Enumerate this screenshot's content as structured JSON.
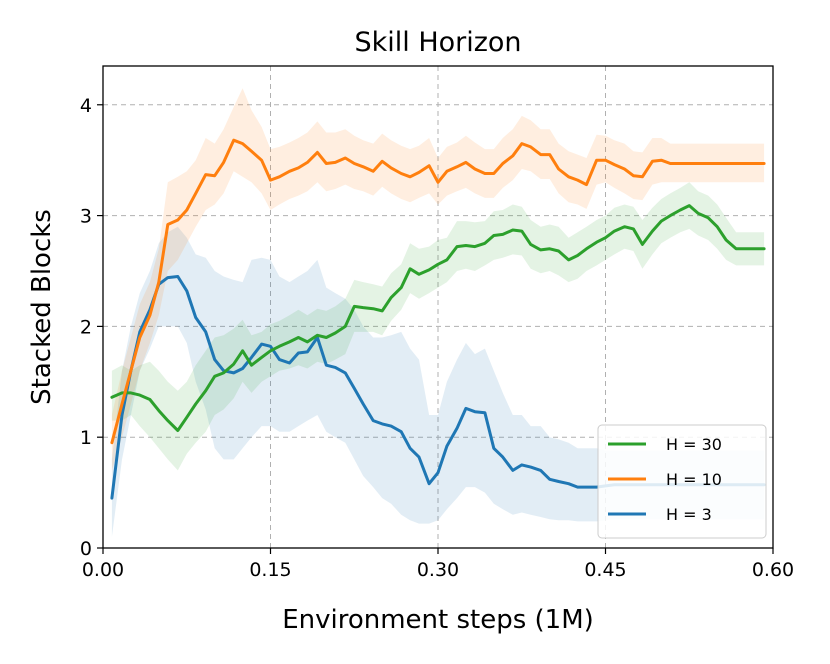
{
  "chart_data": {
    "type": "line",
    "title": "Skill Horizon",
    "xlabel": "Environment steps (1M)",
    "ylabel": "Stacked Blocks",
    "xlim": [
      0.0,
      0.6
    ],
    "ylim": [
      0,
      4.35
    ],
    "xticks": [
      0.0,
      0.15,
      0.3,
      0.45,
      0.6
    ],
    "xtick_labels": [
      "0.00",
      "0.15",
      "0.30",
      "0.45",
      "0.60"
    ],
    "yticks": [
      0,
      1,
      2,
      3,
      4
    ],
    "ytick_labels": [
      "0",
      "1",
      "2",
      "3",
      "4"
    ],
    "grid": true,
    "legend_position": "lower-right",
    "x": [
      0.008,
      0.017,
      0.025,
      0.033,
      0.042,
      0.05,
      0.058,
      0.067,
      0.075,
      0.083,
      0.092,
      0.1,
      0.108,
      0.117,
      0.125,
      0.133,
      0.142,
      0.15,
      0.158,
      0.167,
      0.175,
      0.183,
      0.192,
      0.2,
      0.208,
      0.217,
      0.225,
      0.233,
      0.242,
      0.25,
      0.258,
      0.267,
      0.275,
      0.283,
      0.292,
      0.3,
      0.308,
      0.317,
      0.325,
      0.333,
      0.342,
      0.35,
      0.358,
      0.367,
      0.375,
      0.383,
      0.392,
      0.4,
      0.408,
      0.417,
      0.425,
      0.433,
      0.442,
      0.45,
      0.458,
      0.467,
      0.475,
      0.483,
      0.492,
      0.5,
      0.508,
      0.517,
      0.525,
      0.533,
      0.542,
      0.55,
      0.558,
      0.567,
      0.575,
      0.583,
      0.592
    ],
    "series": [
      {
        "name": "H = 30",
        "color": "#2ca02c",
        "values": [
          1.36,
          1.4,
          1.4,
          1.38,
          1.34,
          1.24,
          1.15,
          1.06,
          1.18,
          1.3,
          1.42,
          1.55,
          1.58,
          1.66,
          1.78,
          1.65,
          1.72,
          1.78,
          1.82,
          1.86,
          1.9,
          1.86,
          1.92,
          1.9,
          1.94,
          2.0,
          2.18,
          2.17,
          2.16,
          2.14,
          2.26,
          2.35,
          2.52,
          2.47,
          2.51,
          2.56,
          2.6,
          2.72,
          2.73,
          2.72,
          2.75,
          2.82,
          2.83,
          2.87,
          2.86,
          2.74,
          2.69,
          2.7,
          2.68,
          2.6,
          2.64,
          2.7,
          2.76,
          2.8,
          2.86,
          2.9,
          2.88,
          2.74,
          2.86,
          2.95,
          3.0,
          3.05,
          3.09,
          3.02,
          2.98,
          2.9,
          2.78,
          2.7,
          2.7,
          2.7,
          2.7
        ],
        "lower": [
          1.15,
          1.15,
          1.2,
          1.1,
          1.0,
          0.9,
          0.8,
          0.7,
          0.85,
          0.95,
          1.05,
          1.2,
          1.25,
          1.35,
          1.5,
          1.4,
          1.5,
          1.55,
          1.6,
          1.62,
          1.65,
          1.62,
          1.68,
          1.66,
          1.7,
          1.75,
          1.95,
          1.95,
          1.95,
          1.92,
          2.05,
          2.15,
          2.3,
          2.25,
          2.3,
          2.35,
          2.4,
          2.5,
          2.52,
          2.5,
          2.55,
          2.6,
          2.62,
          2.65,
          2.64,
          2.52,
          2.48,
          2.5,
          2.46,
          2.4,
          2.43,
          2.5,
          2.55,
          2.6,
          2.65,
          2.7,
          2.68,
          2.52,
          2.65,
          2.75,
          2.8,
          2.85,
          2.88,
          2.82,
          2.78,
          2.7,
          2.6,
          2.55,
          2.55,
          2.55,
          2.55
        ],
        "upper": [
          1.6,
          1.65,
          1.6,
          1.65,
          1.68,
          1.6,
          1.5,
          1.42,
          1.5,
          1.65,
          1.78,
          1.9,
          1.92,
          1.98,
          2.06,
          1.92,
          1.95,
          2.02,
          2.05,
          2.1,
          2.15,
          2.1,
          2.16,
          2.14,
          2.18,
          2.25,
          2.42,
          2.4,
          2.38,
          2.36,
          2.48,
          2.56,
          2.75,
          2.7,
          2.72,
          2.78,
          2.8,
          2.95,
          2.95,
          2.94,
          2.95,
          3.04,
          3.05,
          3.1,
          3.08,
          2.96,
          2.9,
          2.92,
          2.9,
          2.8,
          2.85,
          2.9,
          2.96,
          3.0,
          3.07,
          3.1,
          3.08,
          2.96,
          3.07,
          3.15,
          3.2,
          3.25,
          3.3,
          3.22,
          3.18,
          3.1,
          2.98,
          2.85,
          2.85,
          2.85,
          2.85
        ]
      },
      {
        "name": "H = 10",
        "color": "#ff7f0e",
        "values": [
          0.95,
          1.3,
          1.6,
          1.9,
          2.1,
          2.4,
          2.92,
          2.96,
          3.05,
          3.2,
          3.37,
          3.36,
          3.48,
          3.68,
          3.65,
          3.58,
          3.5,
          3.32,
          3.35,
          3.4,
          3.43,
          3.48,
          3.57,
          3.47,
          3.48,
          3.52,
          3.47,
          3.44,
          3.4,
          3.49,
          3.43,
          3.38,
          3.35,
          3.39,
          3.45,
          3.3,
          3.4,
          3.44,
          3.48,
          3.42,
          3.38,
          3.38,
          3.47,
          3.54,
          3.65,
          3.62,
          3.55,
          3.55,
          3.42,
          3.35,
          3.32,
          3.28,
          3.5,
          3.5,
          3.46,
          3.42,
          3.36,
          3.35,
          3.49,
          3.5,
          3.47,
          3.47,
          3.47,
          3.47,
          3.47,
          3.47,
          3.47,
          3.47,
          3.47,
          3.47,
          3.47
        ],
        "lower": [
          0.7,
          1.0,
          1.3,
          1.6,
          1.85,
          2.1,
          2.5,
          2.6,
          2.75,
          2.9,
          3.05,
          3.1,
          3.2,
          3.4,
          3.35,
          3.3,
          3.2,
          3.05,
          3.1,
          3.15,
          3.18,
          3.22,
          3.3,
          3.22,
          3.24,
          3.28,
          3.24,
          3.22,
          3.18,
          3.26,
          3.2,
          3.15,
          3.12,
          3.16,
          3.2,
          3.1,
          3.18,
          3.22,
          3.25,
          3.2,
          3.16,
          3.16,
          3.25,
          3.32,
          3.42,
          3.4,
          3.33,
          3.33,
          3.2,
          3.12,
          3.1,
          3.06,
          3.28,
          3.3,
          3.25,
          3.2,
          3.15,
          3.14,
          3.28,
          3.3,
          3.3,
          3.3,
          3.3,
          3.3,
          3.3,
          3.3,
          3.3,
          3.3,
          3.3,
          3.3,
          3.3
        ],
        "upper": [
          1.2,
          1.6,
          1.9,
          2.2,
          2.4,
          2.7,
          3.3,
          3.35,
          3.4,
          3.5,
          3.7,
          3.65,
          3.78,
          3.98,
          4.15,
          3.95,
          3.8,
          3.6,
          3.62,
          3.66,
          3.7,
          3.75,
          3.85,
          3.75,
          3.75,
          3.78,
          3.72,
          3.68,
          3.65,
          3.74,
          3.68,
          3.63,
          3.6,
          3.63,
          3.7,
          3.52,
          3.62,
          3.66,
          3.72,
          3.66,
          3.6,
          3.6,
          3.7,
          3.78,
          3.9,
          3.86,
          3.78,
          3.78,
          3.65,
          3.58,
          3.55,
          3.52,
          3.73,
          3.72,
          3.68,
          3.65,
          3.58,
          3.57,
          3.7,
          3.7,
          3.65,
          3.65,
          3.65,
          3.65,
          3.65,
          3.65,
          3.65,
          3.65,
          3.65,
          3.65,
          3.65
        ]
      },
      {
        "name": "H = 3",
        "color": "#1f77b4",
        "values": [
          0.45,
          1.2,
          1.6,
          1.95,
          2.15,
          2.38,
          2.44,
          2.45,
          2.32,
          2.08,
          1.95,
          1.7,
          1.6,
          1.58,
          1.62,
          1.72,
          1.84,
          1.82,
          1.7,
          1.67,
          1.76,
          1.77,
          1.9,
          1.65,
          1.63,
          1.58,
          1.44,
          1.3,
          1.15,
          1.12,
          1.1,
          1.05,
          0.9,
          0.82,
          0.58,
          0.68,
          0.92,
          1.08,
          1.26,
          1.23,
          1.22,
          0.9,
          0.82,
          0.7,
          0.75,
          0.73,
          0.7,
          0.62,
          0.6,
          0.58,
          0.55,
          0.55,
          0.55,
          0.56,
          0.57,
          0.57,
          0.57,
          0.57,
          0.57,
          0.57,
          0.57,
          0.57,
          0.57,
          0.57,
          0.57,
          0.57,
          0.57,
          0.57,
          0.57,
          0.57,
          0.57
        ],
        "lower": [
          0.1,
          0.8,
          1.2,
          1.6,
          1.8,
          2.0,
          2.0,
          2.0,
          1.85,
          1.5,
          1.25,
          0.9,
          0.8,
          0.8,
          0.9,
          1.0,
          1.1,
          1.1,
          1.05,
          1.05,
          1.1,
          1.15,
          1.2,
          1.05,
          1.0,
          0.95,
          0.8,
          0.65,
          0.55,
          0.45,
          0.4,
          0.3,
          0.25,
          0.22,
          0.22,
          0.25,
          0.35,
          0.45,
          0.55,
          0.55,
          0.5,
          0.4,
          0.35,
          0.3,
          0.32,
          0.3,
          0.28,
          0.26,
          0.25,
          0.25,
          0.24,
          0.24,
          0.24,
          0.25,
          0.26,
          0.26,
          0.26,
          0.26,
          0.26,
          0.26,
          0.26,
          0.26,
          0.26,
          0.26,
          0.26,
          0.26,
          0.26,
          0.26,
          0.26,
          0.26,
          0.26
        ],
        "upper": [
          0.8,
          1.6,
          2.0,
          2.3,
          2.5,
          2.75,
          2.85,
          2.9,
          2.8,
          2.65,
          2.62,
          2.5,
          2.45,
          2.42,
          2.4,
          2.6,
          2.62,
          2.6,
          2.45,
          2.4,
          2.45,
          2.5,
          2.6,
          2.35,
          2.3,
          2.25,
          2.15,
          2.0,
          1.9,
          1.9,
          1.92,
          1.95,
          1.8,
          1.7,
          1.2,
          1.2,
          1.5,
          1.7,
          1.85,
          1.75,
          1.8,
          1.6,
          1.4,
          1.2,
          1.2,
          1.1,
          1.1,
          1.0,
          0.98,
          0.95,
          0.9,
          0.9,
          0.9,
          0.88,
          0.88,
          0.88,
          0.88,
          0.88,
          0.88,
          0.88,
          0.88,
          0.88,
          0.88,
          0.88,
          0.88,
          0.88,
          0.88,
          0.88,
          0.88,
          0.88,
          0.88
        ]
      }
    ],
    "legend_order": [
      "H = 30",
      "H = 10",
      "H = 3"
    ]
  }
}
